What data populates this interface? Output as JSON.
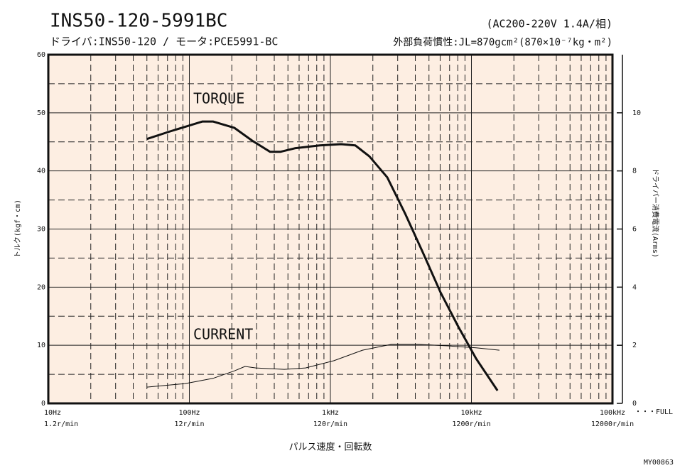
{
  "chart_data": {
    "type": "line",
    "title": "INS50-120-5991BC",
    "subtitle": "ドライバ:INS50-120 / モータ:PCE5991-BC",
    "power_note": "(AC200-220V 1.4A/相)",
    "inertia_note": "外部負荷慣性:JL=870gcm²(870×10⁻⁷kg・m²)",
    "xlabel": "パルス速度・回転数",
    "ylabel": "トルク(kgf・cm)",
    "y2label": "ドライバー消費電流(Arms)",
    "full_note": "・・・FULL",
    "code": "MY00863",
    "log_x": true,
    "grid": true,
    "background": "#fdeee2",
    "xlim": [
      10,
      100000
    ],
    "xticks": [
      {
        "value": 10,
        "label": "10Hz"
      },
      {
        "value": 100,
        "label": "100Hz"
      },
      {
        "value": 1000,
        "label": "1kHz"
      },
      {
        "value": 10000,
        "label": "10kHz"
      },
      {
        "value": 100000,
        "label": "100kHz"
      }
    ],
    "xtick_sublabels": [
      "1.2r/min",
      "12r/min",
      "120r/min",
      "1200r/min",
      "12000r/min"
    ],
    "xminorticks": [
      20,
      30,
      40,
      50,
      60,
      70,
      80,
      90,
      200,
      300,
      400,
      500,
      600,
      700,
      800,
      900,
      2000,
      3000,
      4000,
      5000,
      6000,
      7000,
      8000,
      9000,
      20000,
      30000,
      40000,
      50000,
      60000,
      70000,
      80000,
      90000
    ],
    "ylim": [
      0,
      60
    ],
    "yticks": [
      0,
      10,
      20,
      30,
      40,
      50,
      60
    ],
    "yminorticks": [
      5,
      15,
      25,
      35,
      45,
      55
    ],
    "y2lim": [
      0,
      12
    ],
    "y2ticks": [
      0,
      2,
      4,
      6,
      8,
      10
    ],
    "series": [
      {
        "name": "TORQUE",
        "color": "#111111",
        "x": [
          50,
          73,
          124,
          147,
          209,
          279,
          373,
          444,
          560,
          840,
          1190,
          1500,
          1890,
          2530,
          3380,
          4520,
          6040,
          8070,
          10800,
          15300
        ],
        "values": [
          45.5,
          46.8,
          48.5,
          48.5,
          47.4,
          45.2,
          43.3,
          43.3,
          43.9,
          44.4,
          44.6,
          44.4,
          42.5,
          38.9,
          32.7,
          26.0,
          19.1,
          13.2,
          7.7,
          2.2
        ]
      },
      {
        "name": "CURRENT",
        "color": "#111111",
        "axis": "y2",
        "x": [
          50,
          93,
          147,
          209,
          248,
          296,
          471,
          666,
          1060,
          1690,
          2700,
          4270,
          6780,
          10800,
          15800
        ],
        "values": [
          0.56,
          0.68,
          0.86,
          1.12,
          1.27,
          1.22,
          1.17,
          1.22,
          1.47,
          1.83,
          2.03,
          2.03,
          1.98,
          1.91,
          1.83
        ]
      }
    ]
  }
}
